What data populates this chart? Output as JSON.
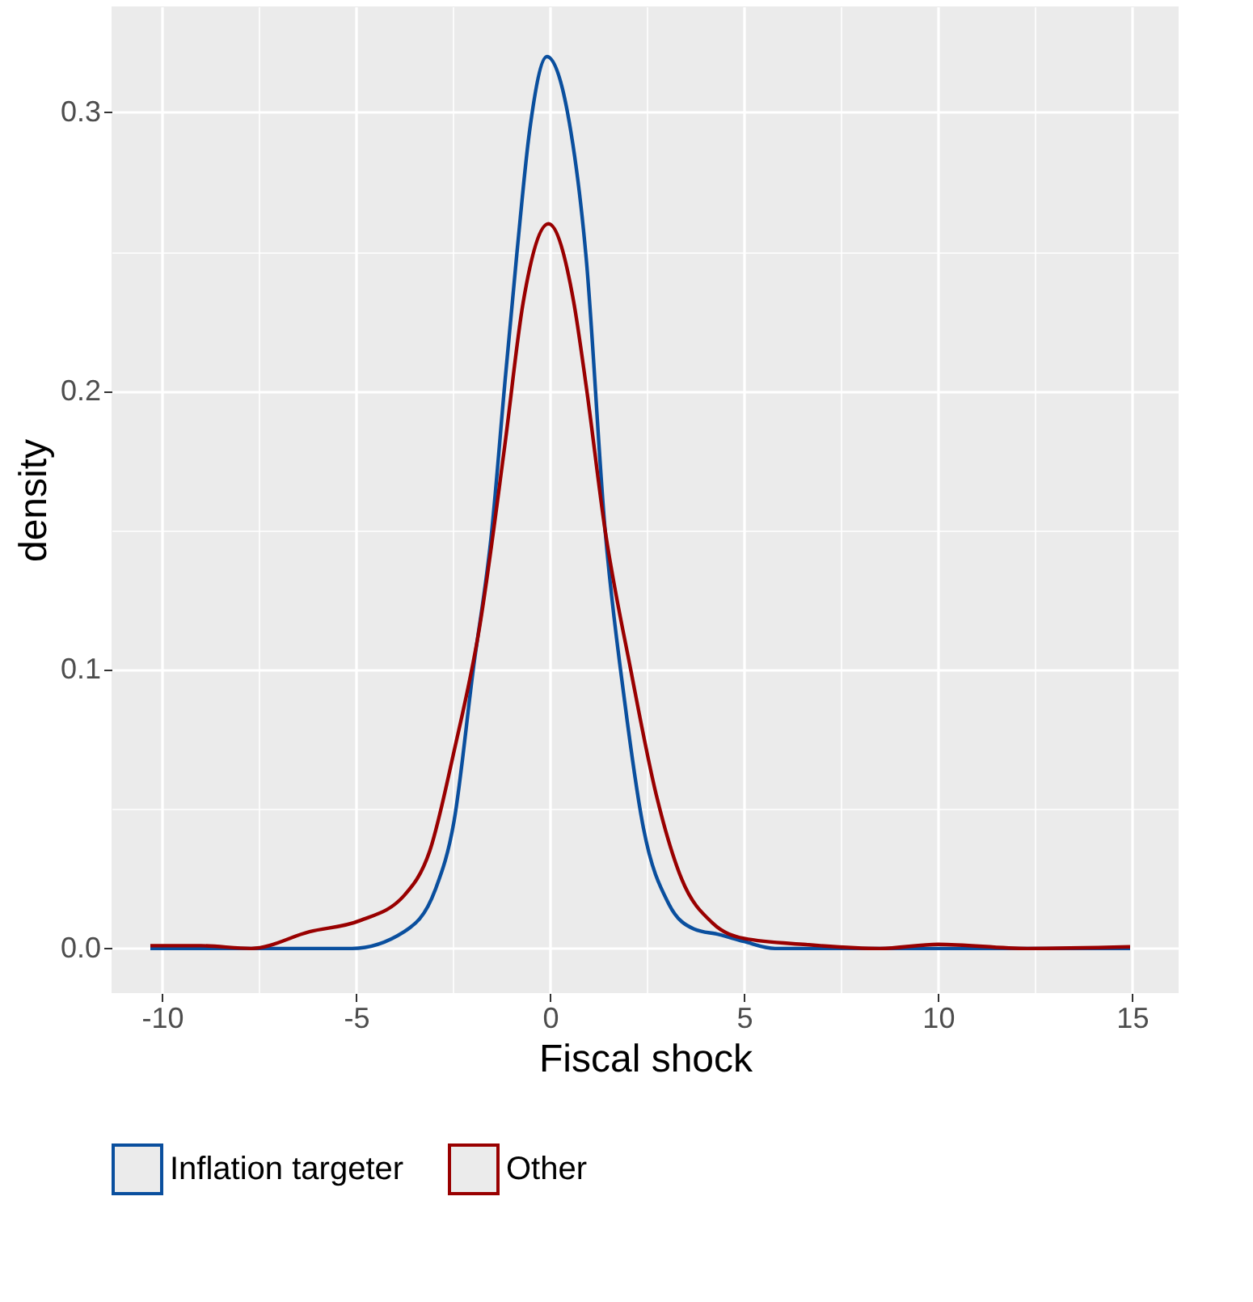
{
  "chart_data": {
    "type": "line",
    "xlabel": "Fiscal shock",
    "ylabel": "density",
    "xlim": [
      -11.3,
      16.2
    ],
    "xticks": [
      -10,
      -5,
      0,
      5,
      10,
      15
    ],
    "ylim": [
      -0.016,
      0.338
    ],
    "yticks": [
      {
        "value": 0,
        "label": "0.0"
      },
      0.1,
      0.2,
      0.3
    ],
    "grid": true,
    "legend": "bottom",
    "marker": "none",
    "line_style": "solid",
    "series": [
      {
        "name": "Inflation targeter",
        "color": "#0a4f9e",
        "x": [
          -10.3,
          -7.5,
          -5.1,
          -3.76,
          -2.96,
          -2.47,
          -1.98,
          -1.5,
          -1.17,
          -0.85,
          -0.53,
          -0.08,
          0.45,
          0.93,
          1.42,
          1.92,
          2.41,
          3.06,
          3.71,
          4.36,
          5.0,
          5.8,
          8.0,
          10.0,
          12.0,
          14.95
        ],
        "values": [
          0,
          0,
          0,
          0.006,
          0.021,
          0.046,
          0.1,
          0.15,
          0.202,
          0.25,
          0.293,
          0.32,
          0.3,
          0.248,
          0.15,
          0.089,
          0.043,
          0.016,
          0.007,
          0.005,
          0.0025,
          0,
          0,
          0,
          0,
          0
        ]
      },
      {
        "name": "Other",
        "color": "#990000",
        "x": [
          -10.3,
          -9.0,
          -7.7,
          -6.2,
          -4.9,
          -3.76,
          -3.1,
          -2.47,
          -1.82,
          -1.17,
          -0.69,
          -0.04,
          0.61,
          0.93,
          1.42,
          2.08,
          2.74,
          3.39,
          4.2,
          5.0,
          6.6,
          8.5,
          10.0,
          12.3,
          14.95
        ],
        "values": [
          0.001,
          0.001,
          0,
          0.006,
          0.01,
          0.019,
          0.035,
          0.071,
          0.115,
          0.18,
          0.232,
          0.26,
          0.232,
          0.202,
          0.15,
          0.1,
          0.055,
          0.025,
          0.009,
          0.0036,
          0.0014,
          0,
          0.0015,
          0,
          0.0006
        ]
      }
    ]
  }
}
